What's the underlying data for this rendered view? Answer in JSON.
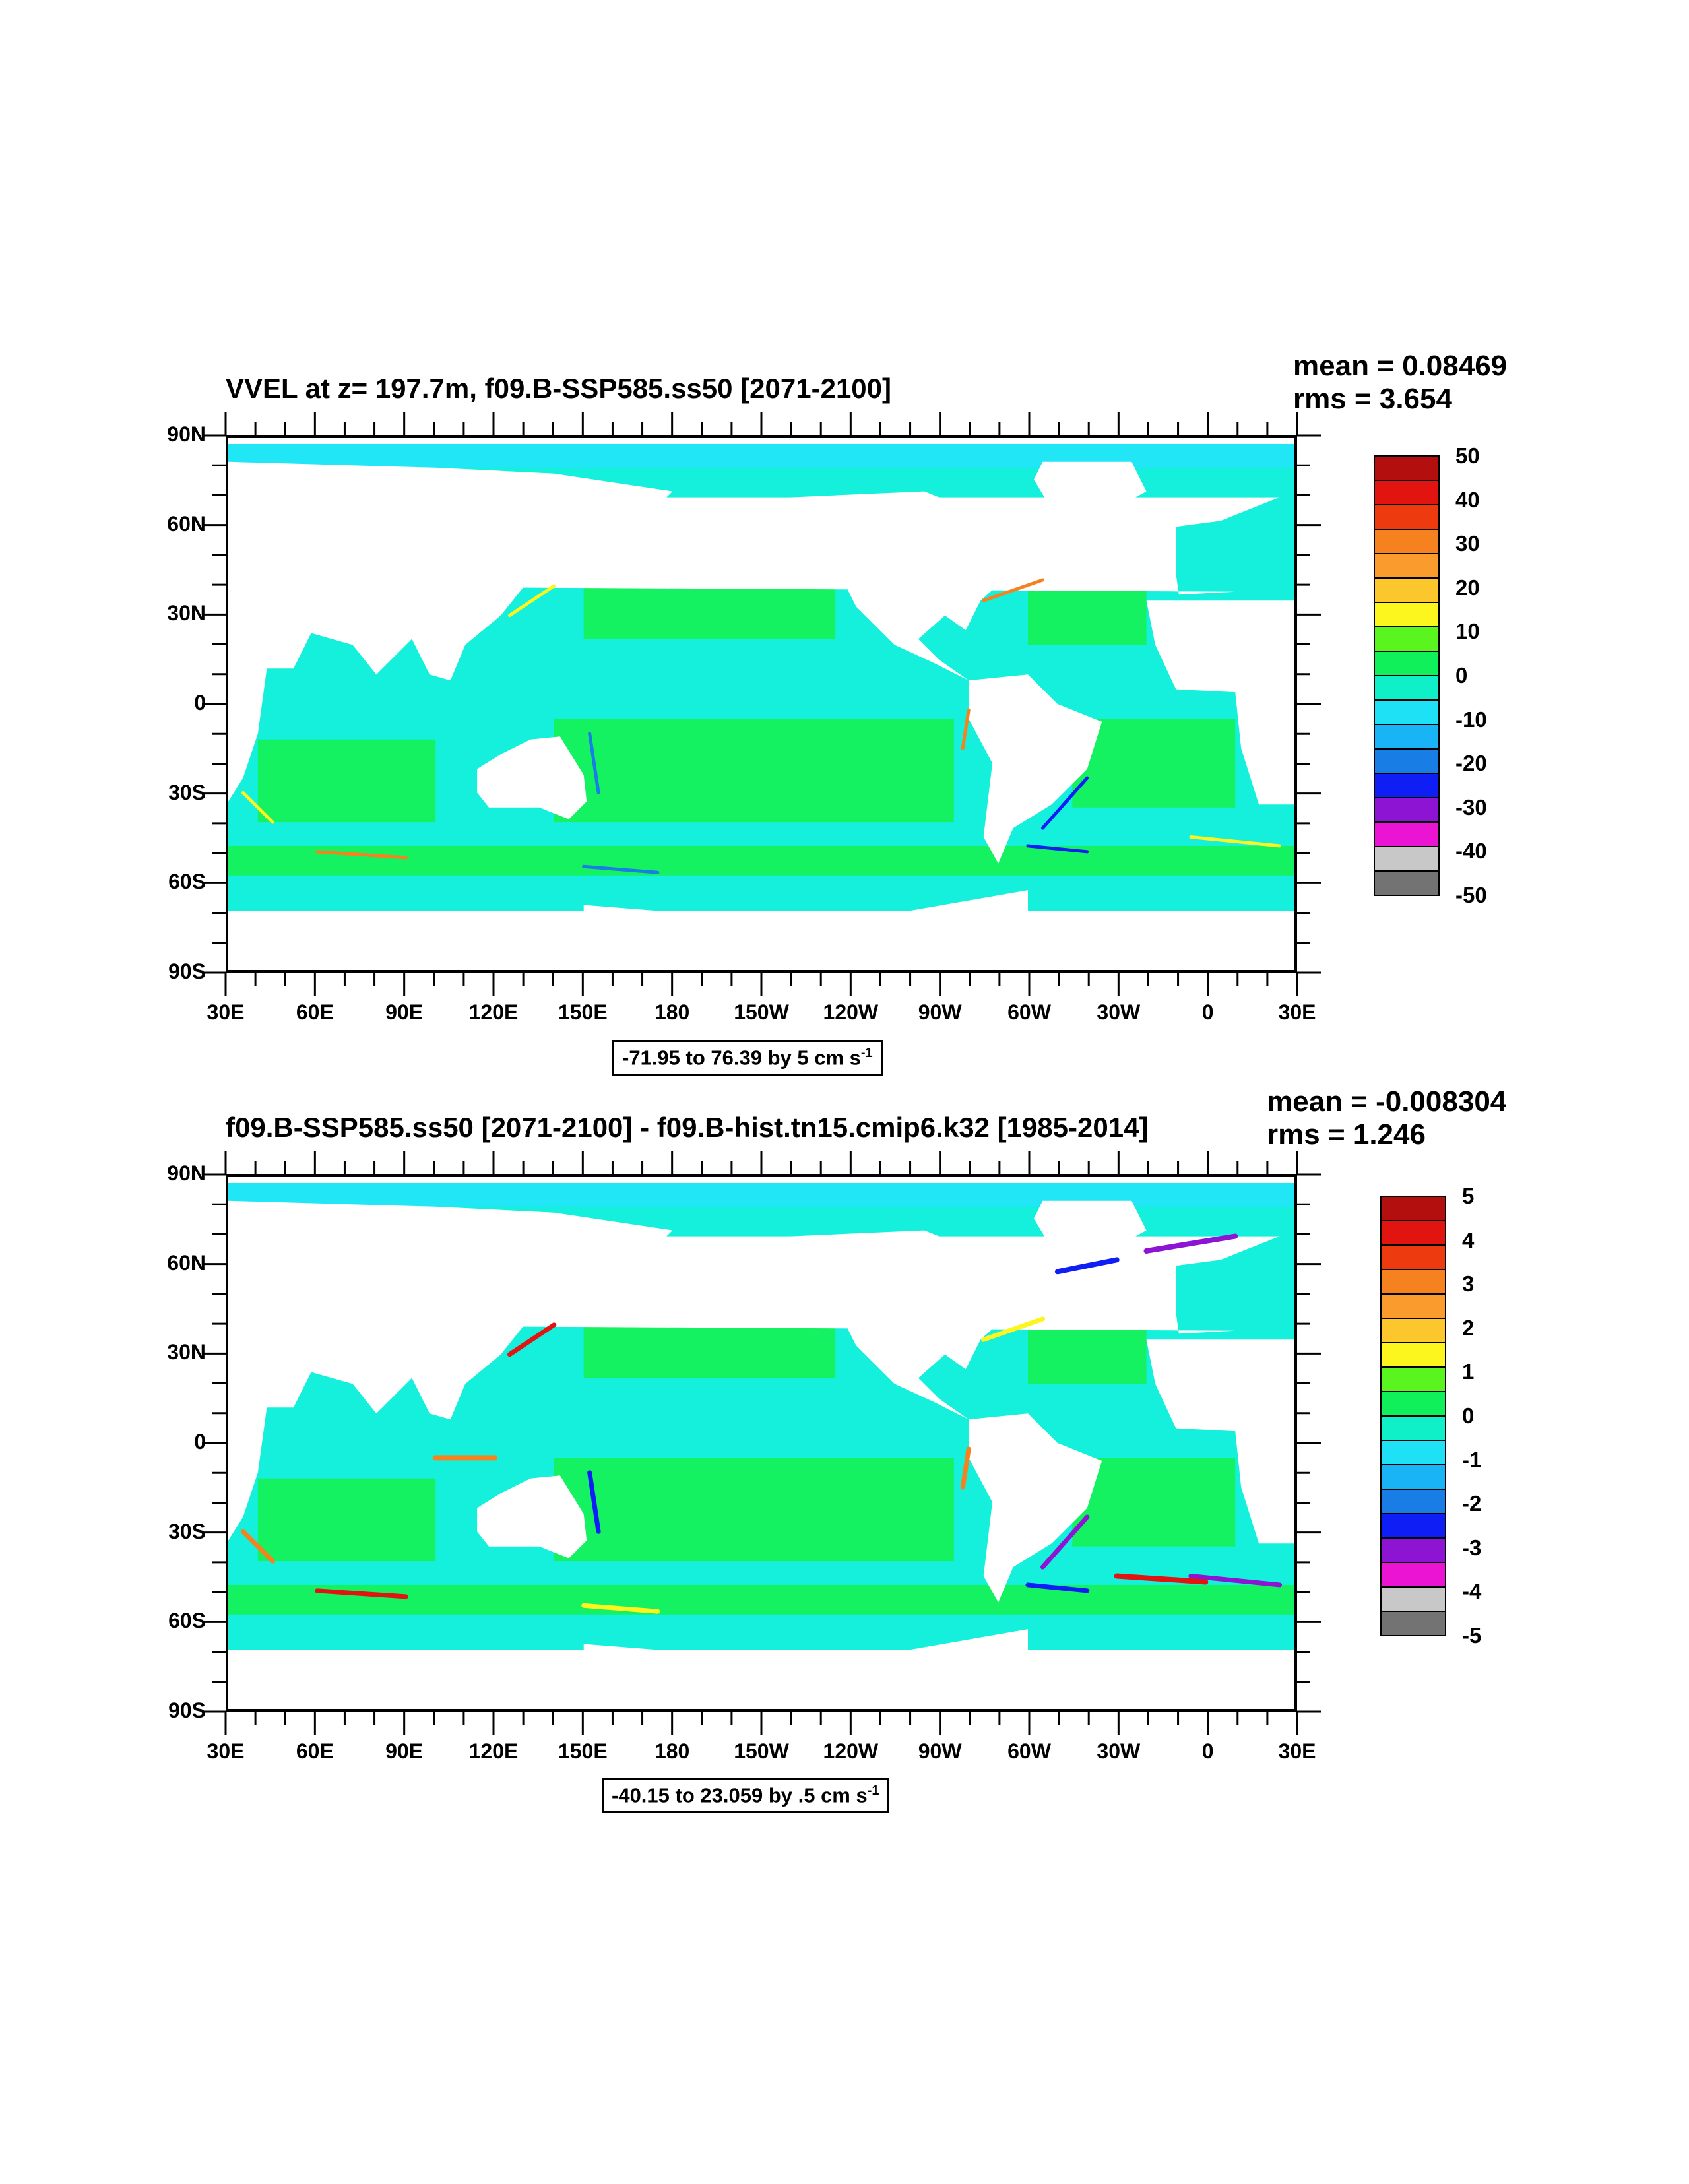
{
  "panels": [
    {
      "title": "VVEL at z= 197.7m, f09.B-SSP585.ss50 [2071-2100]",
      "mean": "mean = 0.08469",
      "rms": "rms = 3.654",
      "range_text": "-71.95 to 76.39 by 5 cm s",
      "range_sup": "-1",
      "colorbar_labels": [
        "50",
        "40",
        "30",
        "20",
        "10",
        "0",
        "-10",
        "-20",
        "-30",
        "-40",
        "-50"
      ],
      "diff": false
    },
    {
      "title": "f09.B-SSP585.ss50 [2071-2100] - f09.B-hist.tn15.cmip6.k32 [1985-2014]",
      "mean": "mean = -0.008304",
      "rms": "rms = 1.246",
      "range_text": "-40.15 to 23.059 by .5 cm s",
      "range_sup": "-1",
      "colorbar_labels": [
        "5",
        "4",
        "3",
        "2",
        "1",
        "0",
        "-1",
        "-2",
        "-3",
        "-4",
        "-5"
      ],
      "diff": true
    }
  ],
  "y_ticks": [
    "90N",
    "60N",
    "30N",
    "0",
    "30S",
    "60S",
    "90S"
  ],
  "x_ticks": [
    "30E",
    "60E",
    "90E",
    "120E",
    "150E",
    "180",
    "150W",
    "120W",
    "90W",
    "60W",
    "30W",
    "0",
    "30E"
  ],
  "colorbar_colors": [
    "#b40f0f",
    "#e2140f",
    "#ee3a0f",
    "#f5821e",
    "#f99b2d",
    "#fcc72d",
    "#fdf51e",
    "#5af51e",
    "#0ff05a",
    "#0ff0c8",
    "#1ee1f5",
    "#19b4f5",
    "#197de6",
    "#0f1ef5",
    "#8c14d2",
    "#eb14d2",
    "#c8c8c8",
    "#737373"
  ],
  "ocean_colors": {
    "green": "#14f05a",
    "cyan": "#14f0dc",
    "light_cyan": "#20e6f5"
  }
}
